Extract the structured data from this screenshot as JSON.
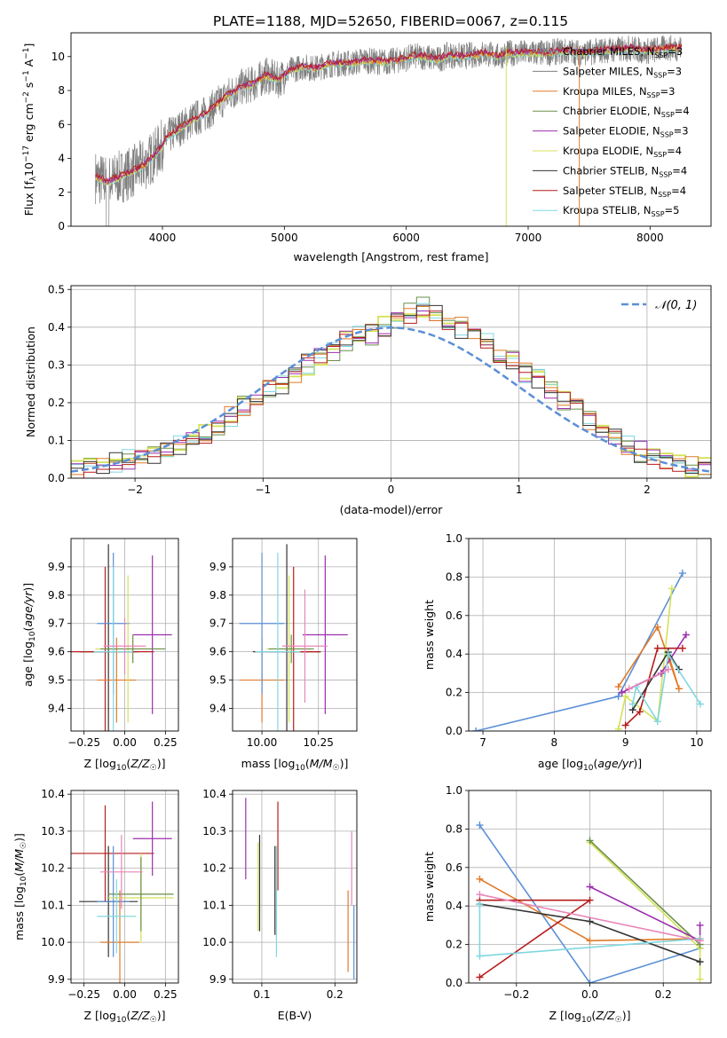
{
  "page_title": "PLATE=1188, MJD=52650, FIBERID=0067, z=0.115",
  "colors": {
    "chabrier_miles": "#808080",
    "salpeter_miles": "#808080",
    "kroupa_miles": "#e07b2a",
    "chabrier_elodie": "#6a8f4a",
    "salpeter_elodie": "#9b2fae",
    "kroupa_elodie": "#d4e157",
    "chabrier_stelib": "#333333",
    "salpeter_stelib": "#b71c1c",
    "kroupa_stelib": "#80d8e0",
    "gaussian": "#5b8fd6",
    "pink": "#e887b8",
    "green": "#7cb342",
    "blue": "#5b8fd6"
  },
  "legend_spectrum": [
    "Chabrier MILES, N_SSP=3",
    "Salpeter MILES, N_SSP=3",
    "Kroupa MILES, N_SSP=3",
    "Chabrier ELODIE, N_SSP=4",
    "Salpeter ELODIE, N_SSP=3",
    "Kroupa ELODIE, N_SSP=4",
    "Chabrier STELIB, N_SSP=4",
    "Salpeter STELIB, N_SSP=4",
    "Kroupa STELIB, N_SSP=5"
  ],
  "legend_hist": "𝒩(0, 1)",
  "chart_data": [
    {
      "type": "line",
      "xlabel": "wavelength [Angstrom, rest frame]",
      "ylabel": "Flux [f_λ 10^-17 erg cm^-2 s^-1 A^-1]",
      "xlim": [
        3250,
        8500
      ],
      "ylim": [
        0,
        11.4
      ],
      "xticks": [
        4000,
        5000,
        6000,
        7000,
        8000
      ],
      "yticks": [
        0,
        2,
        4,
        6,
        8,
        10
      ],
      "x": [
        3450,
        3550,
        3650,
        3750,
        3850,
        3950,
        4050,
        4150,
        4250,
        4350,
        4450,
        4550,
        4650,
        4750,
        4850,
        4950,
        5050,
        5150,
        5250,
        5350,
        5450,
        5550,
        5650,
        5750,
        5850,
        5950,
        6050,
        6150,
        6250,
        6350,
        6450,
        6550,
        6650,
        6750,
        6850,
        6950,
        7050,
        7150,
        7250,
        7350,
        7450,
        7550,
        7650,
        7750,
        7850,
        7950,
        8050,
        8150,
        8250
      ],
      "model_y": [
        2.9,
        2.6,
        2.9,
        3.2,
        3.6,
        4.3,
        5.3,
        5.8,
        6.3,
        6.6,
        7.2,
        7.8,
        8.2,
        8.4,
        8.9,
        8.6,
        9.2,
        9.4,
        9.3,
        9.5,
        9.6,
        9.6,
        9.8,
        9.7,
        9.7,
        9.8,
        10.0,
        10.0,
        9.8,
        10.1,
        10.0,
        10.1,
        10.2,
        10.0,
        10.2,
        10.2,
        10.2,
        10.2,
        10.3,
        10.3,
        10.2,
        10.3,
        10.4,
        10.4,
        10.5,
        10.3,
        10.4,
        10.5,
        10.5
      ],
      "series": [
        {
          "name": "Chabrier MILES, N_SSP=3"
        },
        {
          "name": "Salpeter MILES, N_SSP=3"
        },
        {
          "name": "Kroupa MILES, N_SSP=3"
        },
        {
          "name": "Chabrier ELODIE, N_SSP=4"
        },
        {
          "name": "Salpeter ELODIE, N_SSP=3"
        },
        {
          "name": "Kroupa ELODIE, N_SSP=4"
        },
        {
          "name": "Chabrier STELIB, N_SSP=4"
        },
        {
          "name": "Salpeter STELIB, N_SSP=4"
        },
        {
          "name": "Kroupa STELIB, N_SSP=5"
        }
      ]
    },
    {
      "type": "bar",
      "xlabel": "(data-model)/error",
      "ylabel": "Normed distribution",
      "xlim": [
        -2.5,
        2.5
      ],
      "ylim": [
        0,
        0.51
      ],
      "xticks": [
        -2,
        -1,
        0,
        1,
        2
      ],
      "yticks": [
        0.0,
        0.1,
        0.2,
        0.3,
        0.4,
        0.5
      ],
      "bin_edges_start": -2.5,
      "bin_width": 0.1,
      "values": [
        0.02,
        0.03,
        0.03,
        0.04,
        0.05,
        0.05,
        0.06,
        0.07,
        0.09,
        0.1,
        0.12,
        0.14,
        0.16,
        0.19,
        0.21,
        0.23,
        0.25,
        0.28,
        0.3,
        0.32,
        0.34,
        0.36,
        0.38,
        0.38,
        0.4,
        0.42,
        0.44,
        0.45,
        0.43,
        0.42,
        0.4,
        0.38,
        0.36,
        0.33,
        0.31,
        0.28,
        0.26,
        0.23,
        0.2,
        0.18,
        0.15,
        0.13,
        0.11,
        0.09,
        0.07,
        0.06,
        0.05,
        0.04,
        0.03,
        0.03
      ]
    },
    {
      "type": "scatter",
      "xlabel": "Z [log10(Z/Z☉)]",
      "ylabel": "age [log10(age/yr)]",
      "xlim": [
        -0.33,
        0.33
      ],
      "ylim": [
        9.32,
        10.0
      ],
      "xticks": [
        -0.25,
        0.0,
        0.25
      ],
      "yticks": [
        9.4,
        9.5,
        9.6,
        9.7,
        9.8,
        9.9
      ],
      "points": [
        {
          "x": -0.1,
          "y": 9.6,
          "xerr": 0.18,
          "yerr": 0.38,
          "color": "#333333"
        },
        {
          "x": -0.12,
          "y": 9.6,
          "xerr": 0.3,
          "yerr": 0.3,
          "color": "#b71c1c"
        },
        {
          "x": -0.05,
          "y": 9.5,
          "xerr": 0.12,
          "yerr": 0.15,
          "color": "#e07b2a"
        },
        {
          "x": -0.07,
          "y": 9.7,
          "xerr": 0.1,
          "yerr": 0.25,
          "color": "#5b8fd6"
        },
        {
          "x": 0.02,
          "y": 9.61,
          "xerr": 0.2,
          "yerr": 0.26,
          "color": "#d4e157"
        },
        {
          "x": 0.17,
          "y": 9.66,
          "xerr": 0.12,
          "yerr": 0.28,
          "color": "#9b2fae"
        },
        {
          "x": 0.05,
          "y": 9.61,
          "xerr": 0.2,
          "yerr": 0.05,
          "color": "#6a8f4a"
        },
        {
          "x": -0.07,
          "y": 9.6,
          "xerr": 0.12,
          "yerr": 0.3,
          "color": "#80d8e0"
        },
        {
          "x": 0.0,
          "y": 9.62,
          "xerr": 0.13,
          "yerr": 0.1,
          "color": "#e887b8"
        }
      ]
    },
    {
      "type": "scatter",
      "xlabel": "mass [log10(M/M☉)]",
      "ylabel": "",
      "xlim": [
        9.87,
        10.42
      ],
      "ylim": [
        9.32,
        10.0
      ],
      "xticks": [
        10.0,
        10.25
      ],
      "yticks": [
        9.4,
        9.5,
        9.6,
        9.7,
        9.8,
        9.9
      ],
      "points": [
        {
          "x": 10.11,
          "y": 9.6,
          "xerr": 0.15,
          "yerr": 0.38,
          "color": "#333333"
        },
        {
          "x": 10.14,
          "y": 9.6,
          "xerr": 0.12,
          "yerr": 0.3,
          "color": "#b71c1c"
        },
        {
          "x": 10.0,
          "y": 9.5,
          "xerr": 0.1,
          "yerr": 0.15,
          "color": "#e07b2a"
        },
        {
          "x": 10.0,
          "y": 9.7,
          "xerr": 0.1,
          "yerr": 0.25,
          "color": "#5b8fd6"
        },
        {
          "x": 10.12,
          "y": 9.61,
          "xerr": 0.1,
          "yerr": 0.26,
          "color": "#d4e157"
        },
        {
          "x": 10.28,
          "y": 9.66,
          "xerr": 0.1,
          "yerr": 0.28,
          "color": "#9b2fae"
        },
        {
          "x": 10.13,
          "y": 9.61,
          "xerr": 0.1,
          "yerr": 0.05,
          "color": "#6a8f4a"
        },
        {
          "x": 10.07,
          "y": 9.6,
          "xerr": 0.1,
          "yerr": 0.35,
          "color": "#80d8e0"
        },
        {
          "x": 10.19,
          "y": 9.62,
          "xerr": 0.1,
          "yerr": 0.2,
          "color": "#e887b8"
        }
      ]
    },
    {
      "type": "line",
      "xlabel": "age [log10(age/yr)]",
      "ylabel": "mass weight",
      "xlim": [
        6.8,
        10.2
      ],
      "ylim": [
        0,
        1.0
      ],
      "xticks": [
        7,
        8,
        9,
        10
      ],
      "yticks": [
        0.0,
        0.2,
        0.4,
        0.6,
        0.8,
        1.0
      ],
      "series": [
        {
          "color": "#5b8fd6",
          "x": [
            6.9,
            8.9,
            9.8
          ],
          "y": [
            0.0,
            0.18,
            0.82
          ]
        },
        {
          "color": "#e07b2a",
          "x": [
            8.9,
            9.45,
            9.75,
            9.6
          ],
          "y": [
            0.23,
            0.54,
            0.22,
            0.4
          ]
        },
        {
          "color": "#d4e157",
          "x": [
            8.9,
            9.0,
            9.45,
            9.65
          ],
          "y": [
            0.01,
            0.18,
            0.05,
            0.74
          ]
        },
        {
          "color": "#9b2fae",
          "x": [
            8.95,
            9.5,
            9.85
          ],
          "y": [
            0.2,
            0.3,
            0.5
          ]
        },
        {
          "color": "#b71c1c",
          "x": [
            9.0,
            9.2,
            9.45,
            9.8
          ],
          "y": [
            0.03,
            0.1,
            0.43,
            0.43
          ]
        },
        {
          "color": "#333333",
          "x": [
            9.1,
            9.6,
            9.75
          ],
          "y": [
            0.11,
            0.41,
            0.32
          ]
        },
        {
          "color": "#80d8e0",
          "x": [
            9.1,
            9.15,
            9.45,
            9.6,
            10.05
          ],
          "y": [
            0.14,
            0.23,
            0.05,
            0.4,
            0.14
          ]
        },
        {
          "color": "#e887b8",
          "x": [
            9.05,
            9.6
          ],
          "y": [
            0.22,
            0.32
          ]
        }
      ]
    },
    {
      "type": "scatter",
      "xlabel": "Z [log10(Z/Z☉)]",
      "ylabel": "mass [log10(M/M☉)]",
      "xlim": [
        -0.33,
        0.33
      ],
      "ylim": [
        9.89,
        10.41
      ],
      "xticks": [
        -0.25,
        0.0,
        0.25
      ],
      "yticks": [
        9.9,
        10.0,
        10.1,
        10.2,
        10.3,
        10.4
      ],
      "points": [
        {
          "x": -0.1,
          "y": 10.11,
          "xerr": 0.18,
          "yerr": 0.15,
          "color": "#333333"
        },
        {
          "x": -0.12,
          "y": 10.24,
          "xerr": 0.3,
          "yerr": 0.13,
          "color": "#b71c1c"
        },
        {
          "x": -0.03,
          "y": 10.0,
          "xerr": 0.12,
          "yerr": 0.14,
          "color": "#e07b2a"
        },
        {
          "x": -0.07,
          "y": 10.11,
          "xerr": 0.1,
          "yerr": 0.15,
          "color": "#5b8fd6"
        },
        {
          "x": 0.1,
          "y": 10.12,
          "xerr": 0.2,
          "yerr": 0.12,
          "color": "#d4e157"
        },
        {
          "x": 0.17,
          "y": 10.28,
          "xerr": 0.12,
          "yerr": 0.1,
          "color": "#9b2fae"
        },
        {
          "x": 0.1,
          "y": 10.13,
          "xerr": 0.2,
          "yerr": 0.1,
          "color": "#6a8f4a"
        },
        {
          "x": -0.05,
          "y": 10.07,
          "xerr": 0.12,
          "yerr": 0.1,
          "color": "#80d8e0"
        },
        {
          "x": -0.02,
          "y": 10.19,
          "xerr": 0.13,
          "yerr": 0.1,
          "color": "#e887b8"
        }
      ]
    },
    {
      "type": "scatter",
      "xlabel": "E(B-V)",
      "ylabel": "",
      "xlim": [
        0.06,
        0.23
      ],
      "ylim": [
        9.89,
        10.41
      ],
      "xticks": [
        0.1,
        0.2
      ],
      "yticks": [
        9.9,
        10.0,
        10.1,
        10.2,
        10.3,
        10.4
      ],
      "points": [
        {
          "x": 0.078,
          "y": 10.28,
          "yerr": 0.11,
          "color": "#9b2fae"
        },
        {
          "x": 0.097,
          "y": 10.16,
          "yerr": 0.13,
          "color": "#333333"
        },
        {
          "x": 0.095,
          "y": 10.15,
          "yerr": 0.12,
          "color": "#d4e157"
        },
        {
          "x": 0.118,
          "y": 10.14,
          "yerr": 0.12,
          "color": "#333333"
        },
        {
          "x": 0.12,
          "y": 10.11,
          "yerr": 0.15,
          "color": "#80d8e0"
        },
        {
          "x": 0.122,
          "y": 10.26,
          "yerr": 0.12,
          "color": "#b71c1c"
        },
        {
          "x": 0.218,
          "y": 10.03,
          "yerr": 0.11,
          "color": "#e07b2a"
        },
        {
          "x": 0.223,
          "y": 10.2,
          "yerr": 0.1,
          "color": "#e887b8"
        },
        {
          "x": 0.226,
          "y": 10.0,
          "yerr": 0.1,
          "color": "#5b8fd6"
        }
      ]
    },
    {
      "type": "line",
      "xlabel": "Z [log10(Z/Z☉)]",
      "ylabel": "mass weight",
      "xlim": [
        -0.33,
        0.33
      ],
      "ylim": [
        0,
        1.0
      ],
      "xticks": [
        -0.2,
        0.0,
        0.2
      ],
      "yticks": [
        0.0,
        0.2,
        0.4,
        0.6,
        0.8,
        1.0
      ],
      "series": [
        {
          "color": "#5b8fd6",
          "x": [
            -0.3,
            0.0,
            0.3
          ],
          "y": [
            0.82,
            0.0,
            0.18
          ]
        },
        {
          "color": "#e07b2a",
          "x": [
            -0.3,
            0.0,
            0.3
          ],
          "y": [
            0.54,
            0.22,
            0.23
          ]
        },
        {
          "color": "#d4e157",
          "x": [
            0.0,
            0.3,
            0.3
          ],
          "y": [
            0.73,
            0.18,
            0.02
          ]
        },
        {
          "color": "#6a8f4a",
          "x": [
            0.0,
            0.3
          ],
          "y": [
            0.74,
            0.2
          ]
        },
        {
          "color": "#9b2fae",
          "x": [
            0.0,
            0.3,
            0.3
          ],
          "y": [
            0.5,
            0.22,
            0.3
          ]
        },
        {
          "color": "#b71c1c",
          "x": [
            -0.3,
            0.0,
            -0.3
          ],
          "y": [
            0.03,
            0.43,
            0.43
          ]
        },
        {
          "color": "#333333",
          "x": [
            -0.3,
            0.0,
            0.3
          ],
          "y": [
            0.41,
            0.32,
            0.11
          ]
        },
        {
          "color": "#80d8e0",
          "x": [
            -0.3,
            -0.3,
            0.3
          ],
          "y": [
            0.41,
            0.14,
            0.23
          ]
        },
        {
          "color": "#e887b8",
          "x": [
            -0.3,
            0.3
          ],
          "y": [
            0.46,
            0.22
          ]
        }
      ]
    }
  ]
}
